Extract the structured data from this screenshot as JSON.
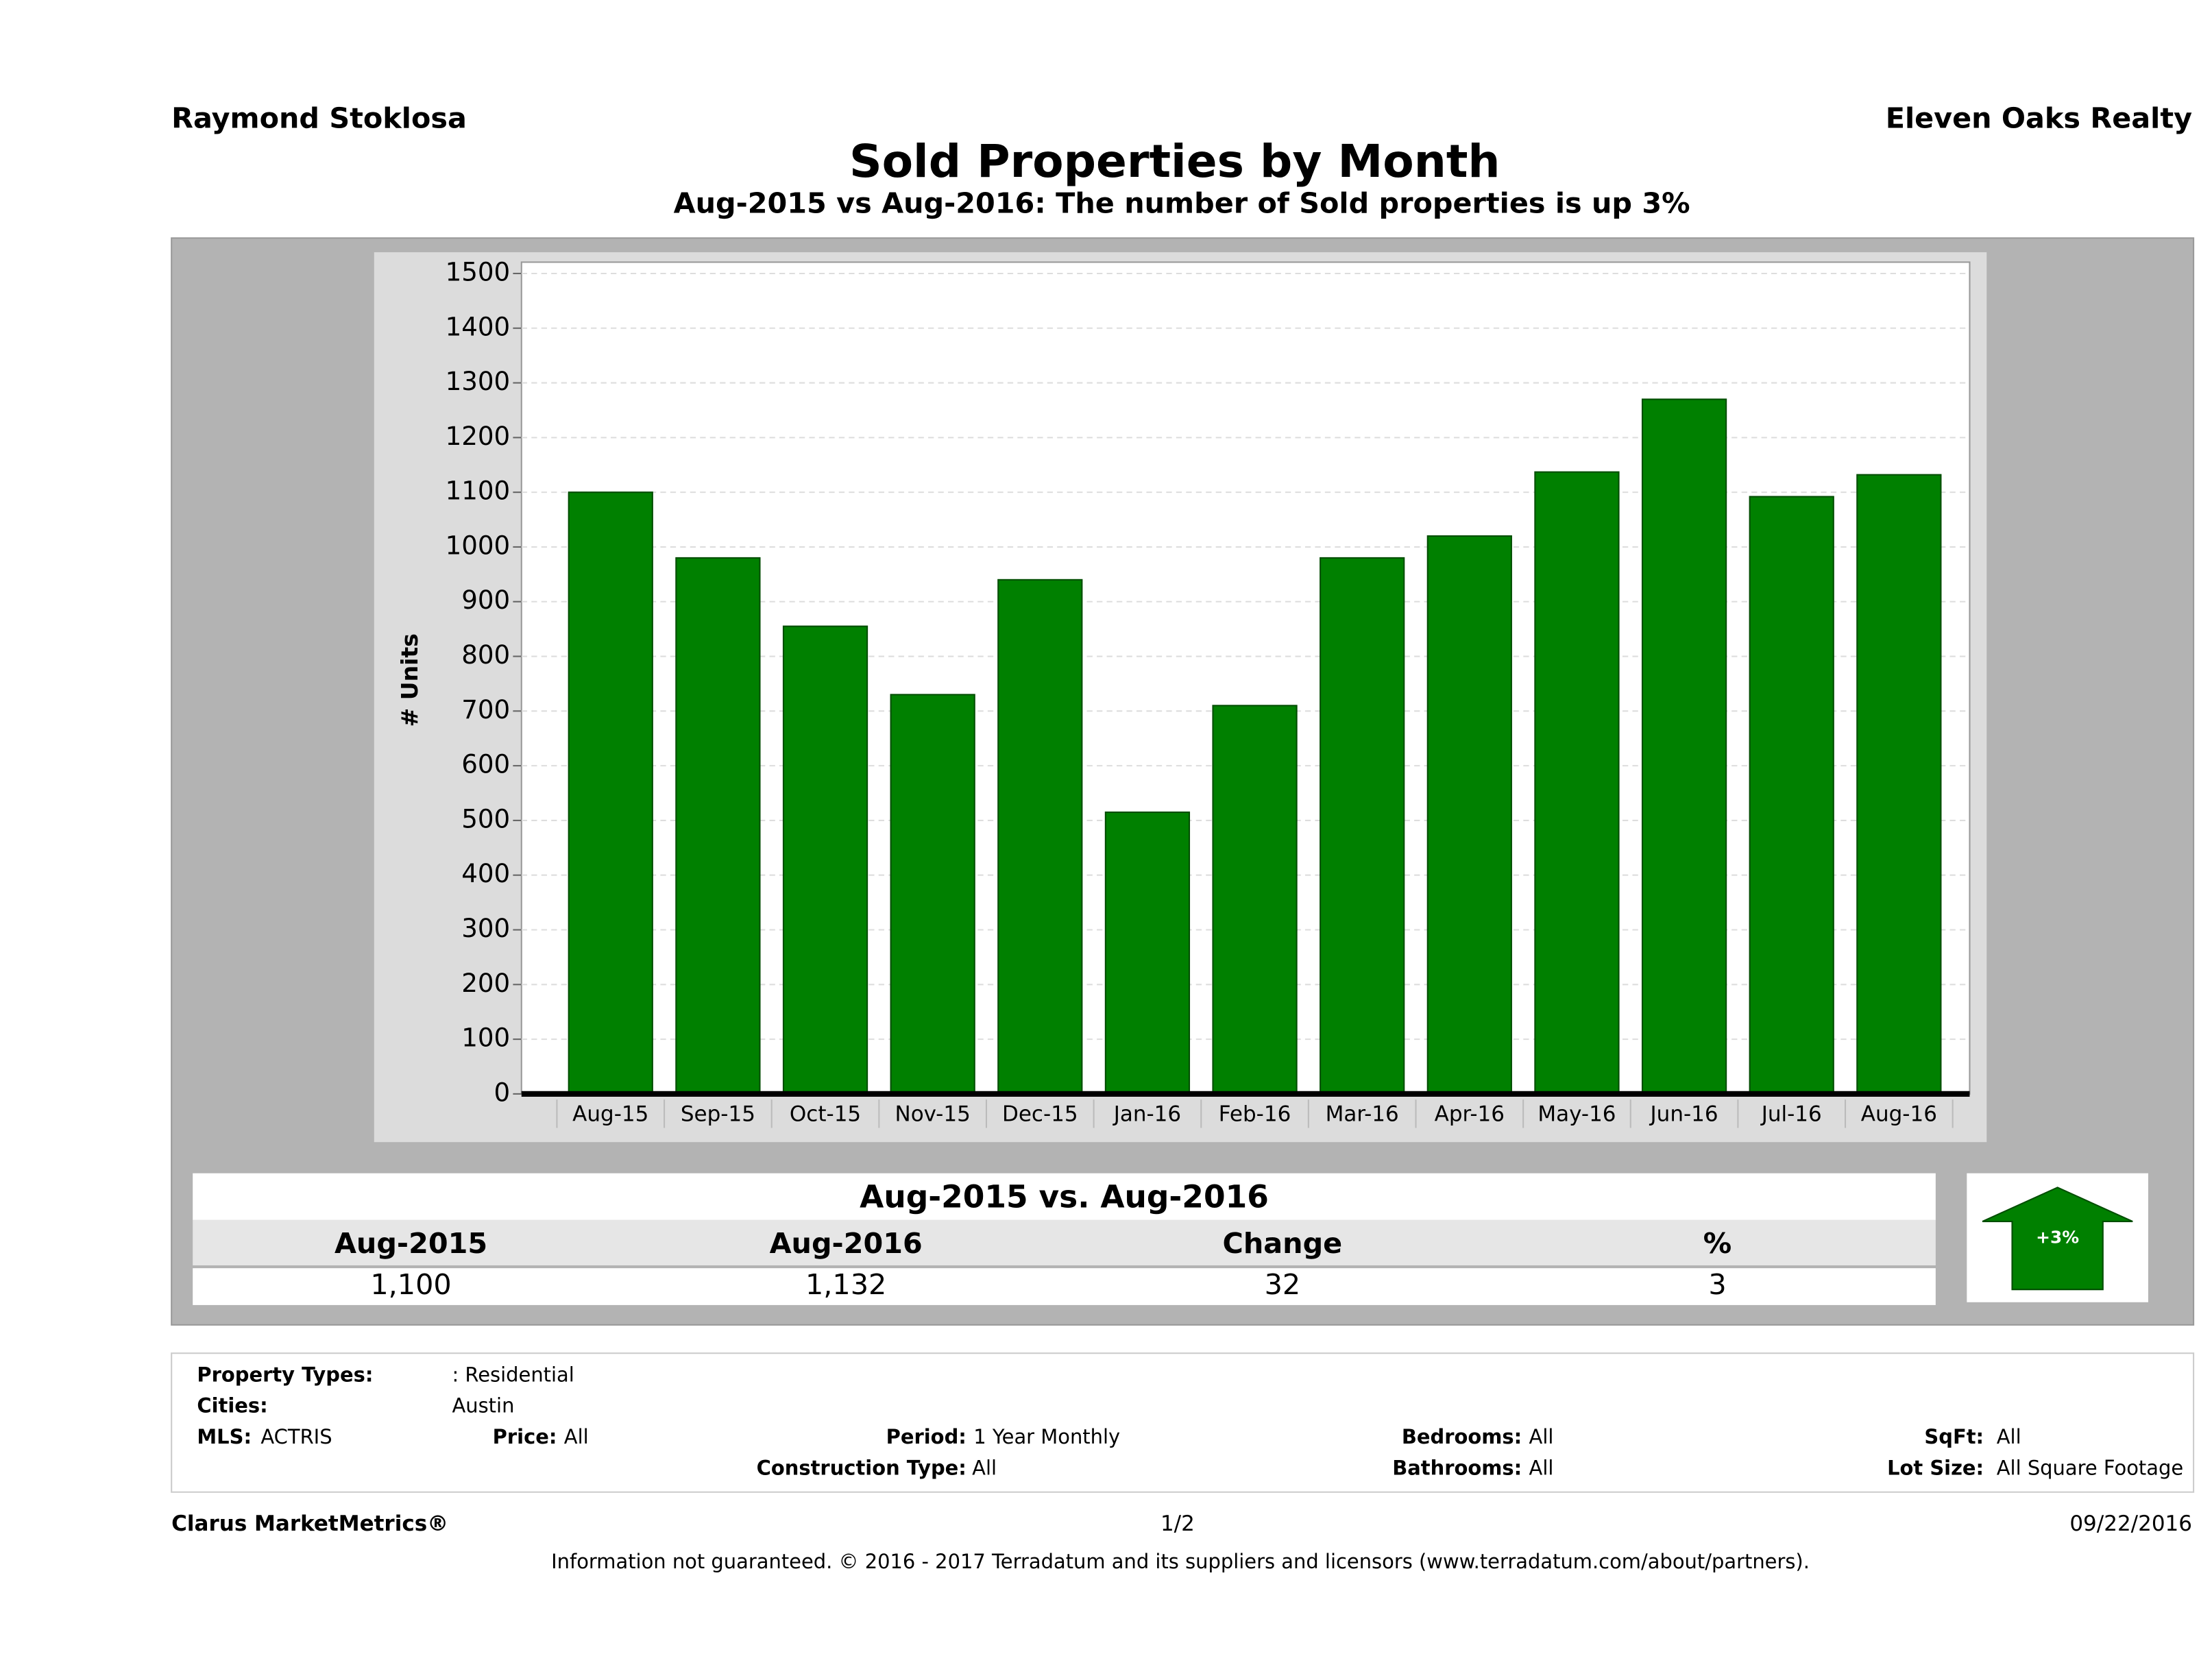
{
  "header": {
    "agent": "Raymond Stoklosa",
    "company": "Eleven Oaks Realty"
  },
  "chart_data": {
    "type": "bar",
    "title": "Sold Properties by Month",
    "subtitle": "Aug-2015 vs Aug-2016: The number of Sold  properties is up 3%",
    "ylabel": "# Units",
    "categories": [
      "Aug-15",
      "Sep-15",
      "Oct-15",
      "Nov-15",
      "Dec-15",
      "Jan-16",
      "Feb-16",
      "Mar-16",
      "Apr-16",
      "May-16",
      "Jun-16",
      "Jul-16",
      "Aug-16"
    ],
    "values": [
      1100,
      980,
      855,
      730,
      940,
      515,
      710,
      980,
      1020,
      1137,
      1270,
      1092,
      1132
    ],
    "color": "#008000",
    "ylim": [
      0,
      1500
    ],
    "yticks": [
      0,
      100,
      200,
      300,
      400,
      500,
      600,
      700,
      800,
      900,
      1000,
      1100,
      1200,
      1300,
      1400,
      1500
    ],
    "grid": true
  },
  "summary": {
    "title": "Aug-2015 vs. Aug-2016",
    "headers": [
      "Aug-2015",
      "Aug-2016",
      "Change",
      "%"
    ],
    "values": [
      "1,100",
      "1,132",
      "32",
      "3"
    ],
    "badge": "+3%"
  },
  "filters": {
    "property_types": {
      "label": "Property Types:",
      "value": ": Residential"
    },
    "cities": {
      "label": "Cities:",
      "value": "Austin"
    },
    "mls": {
      "label": "MLS:",
      "value": "ACTRIS"
    },
    "price": {
      "label": "Price:",
      "value": "All"
    },
    "period": {
      "label": "Period:",
      "value": "1 Year Monthly"
    },
    "bedrooms": {
      "label": "Bedrooms:",
      "value": "All"
    },
    "sqft": {
      "label": "SqFt:",
      "value": "All"
    },
    "construction": {
      "label": "Construction Type:",
      "value": "All"
    },
    "bathrooms": {
      "label": "Bathrooms:",
      "value": "All"
    },
    "lot_size": {
      "label": "Lot Size:",
      "value": "All Square Footage"
    }
  },
  "footer": {
    "brand": "Clarus MarketMetrics®",
    "page": "1/2",
    "date": "09/22/2016",
    "disclaimer": "Information not guaranteed. © 2016 - 2017 Terradatum and its suppliers and licensors (www.terradatum.com/about/partners)."
  }
}
